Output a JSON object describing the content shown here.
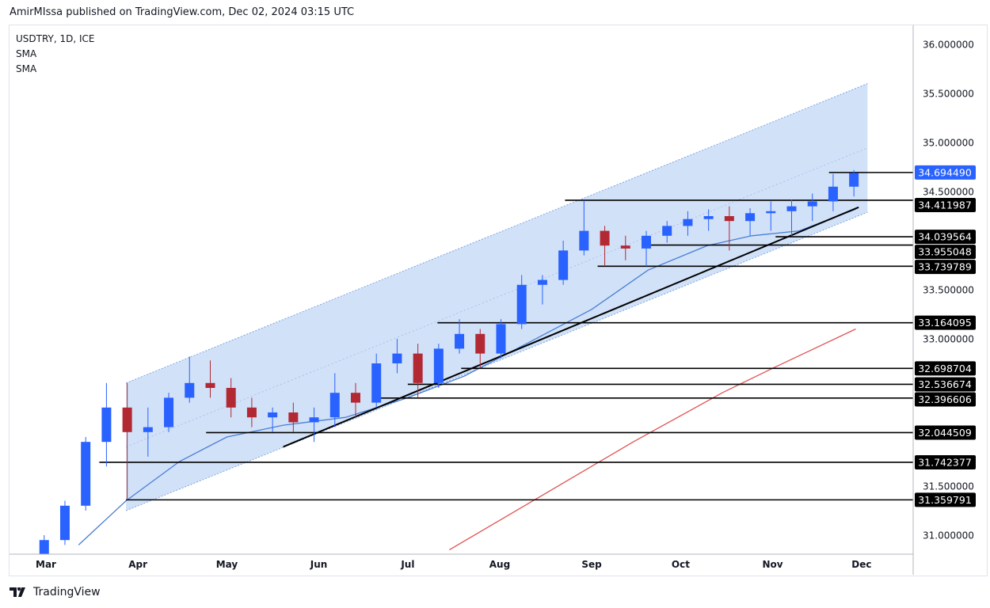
{
  "header": {
    "published": "AmirMIssa published on TradingView.com, Dec 02, 2024 03:15 UTC"
  },
  "legend": {
    "symbol": "USDTRY, 1D, ICE",
    "ind1": "SMA",
    "ind2": "SMA"
  },
  "footer": {
    "brand": "TradingView"
  },
  "colors": {
    "up": "#2962ff",
    "down": "#b22833",
    "channel": "#c9dcf7",
    "sma_fast": "#4a7fd4",
    "sma_slow": "#e05252",
    "last_price": "#2962ff"
  },
  "chart_data": {
    "type": "candlestick",
    "symbol": "USDTRY",
    "interval": "1D",
    "ylim": [
      30.85,
      36.1
    ],
    "y_ticks": [
      "36.000000",
      "35.500000",
      "35.000000",
      "34.500000",
      "33.500000",
      "33.000000",
      "31.500000",
      "31.000000"
    ],
    "x_ticks": [
      "Mar",
      "Apr",
      "May",
      "Jun",
      "Jul",
      "Aug",
      "Sep",
      "Oct",
      "Nov",
      "Dec"
    ],
    "x_tick_dates": [
      "2024-03-01",
      "2024-04-01",
      "2024-05-01",
      "2024-06-01",
      "2024-07-01",
      "2024-08-01",
      "2024-09-01",
      "2024-10-01",
      "2024-11-01",
      "2024-12-01"
    ],
    "candles": [
      {
        "d": "2024-02-27",
        "o": 30.8,
        "h": 31.0,
        "l": 30.78,
        "c": 30.95
      },
      {
        "d": "2024-03-05",
        "o": 30.95,
        "h": 31.35,
        "l": 30.9,
        "c": 31.3
      },
      {
        "d": "2024-03-12",
        "o": 31.3,
        "h": 32.0,
        "l": 31.25,
        "c": 31.95
      },
      {
        "d": "2024-03-19",
        "o": 31.95,
        "h": 32.55,
        "l": 31.7,
        "c": 32.3
      },
      {
        "d": "2024-03-26",
        "o": 32.3,
        "h": 32.55,
        "l": 31.36,
        "c": 32.05
      },
      {
        "d": "2024-04-02",
        "o": 32.05,
        "h": 32.3,
        "l": 31.8,
        "c": 32.1
      },
      {
        "d": "2024-04-09",
        "o": 32.1,
        "h": 32.45,
        "l": 32.05,
        "c": 32.4
      },
      {
        "d": "2024-04-16",
        "o": 32.4,
        "h": 32.82,
        "l": 32.35,
        "c": 32.55
      },
      {
        "d": "2024-04-23",
        "o": 32.55,
        "h": 32.78,
        "l": 32.4,
        "c": 32.5
      },
      {
        "d": "2024-04-30",
        "o": 32.5,
        "h": 32.6,
        "l": 32.2,
        "c": 32.3
      },
      {
        "d": "2024-05-07",
        "o": 32.3,
        "h": 32.4,
        "l": 32.1,
        "c": 32.2
      },
      {
        "d": "2024-05-14",
        "o": 32.2,
        "h": 32.3,
        "l": 32.05,
        "c": 32.25
      },
      {
        "d": "2024-05-21",
        "o": 32.25,
        "h": 32.35,
        "l": 32.05,
        "c": 32.15
      },
      {
        "d": "2024-05-28",
        "o": 32.15,
        "h": 32.3,
        "l": 31.95,
        "c": 32.2
      },
      {
        "d": "2024-06-04",
        "o": 32.2,
        "h": 32.65,
        "l": 32.1,
        "c": 32.45
      },
      {
        "d": "2024-06-11",
        "o": 32.45,
        "h": 32.55,
        "l": 32.2,
        "c": 32.35
      },
      {
        "d": "2024-06-18",
        "o": 32.35,
        "h": 32.85,
        "l": 32.3,
        "c": 32.75
      },
      {
        "d": "2024-06-25",
        "o": 32.75,
        "h": 33.0,
        "l": 32.65,
        "c": 32.85
      },
      {
        "d": "2024-07-02",
        "o": 32.85,
        "h": 32.95,
        "l": 32.4,
        "c": 32.55
      },
      {
        "d": "2024-07-09",
        "o": 32.55,
        "h": 32.95,
        "l": 32.5,
        "c": 32.9
      },
      {
        "d": "2024-07-16",
        "o": 32.9,
        "h": 33.2,
        "l": 32.85,
        "c": 33.05
      },
      {
        "d": "2024-07-23",
        "o": 33.05,
        "h": 33.1,
        "l": 32.7,
        "c": 32.85
      },
      {
        "d": "2024-07-30",
        "o": 32.85,
        "h": 33.2,
        "l": 32.8,
        "c": 33.15
      },
      {
        "d": "2024-08-06",
        "o": 33.15,
        "h": 33.65,
        "l": 33.1,
        "c": 33.55
      },
      {
        "d": "2024-08-13",
        "o": 33.55,
        "h": 33.65,
        "l": 33.35,
        "c": 33.6
      },
      {
        "d": "2024-08-20",
        "o": 33.6,
        "h": 34.0,
        "l": 33.55,
        "c": 33.9
      },
      {
        "d": "2024-08-27",
        "o": 33.9,
        "h": 34.41,
        "l": 33.85,
        "c": 34.1
      },
      {
        "d": "2024-09-03",
        "o": 34.1,
        "h": 34.15,
        "l": 33.75,
        "c": 33.95
      },
      {
        "d": "2024-09-10",
        "o": 33.95,
        "h": 34.05,
        "l": 33.8,
        "c": 33.92
      },
      {
        "d": "2024-09-17",
        "o": 33.92,
        "h": 34.1,
        "l": 33.74,
        "c": 34.05
      },
      {
        "d": "2024-09-24",
        "o": 34.05,
        "h": 34.2,
        "l": 33.98,
        "c": 34.15
      },
      {
        "d": "2024-10-01",
        "o": 34.15,
        "h": 34.3,
        "l": 34.05,
        "c": 34.22
      },
      {
        "d": "2024-10-08",
        "o": 34.22,
        "h": 34.32,
        "l": 34.1,
        "c": 34.25
      },
      {
        "d": "2024-10-15",
        "o": 34.25,
        "h": 34.35,
        "l": 33.9,
        "c": 34.2
      },
      {
        "d": "2024-10-22",
        "o": 34.2,
        "h": 34.33,
        "l": 34.05,
        "c": 34.28
      },
      {
        "d": "2024-10-29",
        "o": 34.28,
        "h": 34.4,
        "l": 34.1,
        "c": 34.3
      },
      {
        "d": "2024-11-05",
        "o": 34.3,
        "h": 34.42,
        "l": 34.05,
        "c": 34.35
      },
      {
        "d": "2024-11-12",
        "o": 34.35,
        "h": 34.48,
        "l": 34.2,
        "c": 34.4
      },
      {
        "d": "2024-11-19",
        "o": 34.4,
        "h": 34.68,
        "l": 34.3,
        "c": 34.55
      },
      {
        "d": "2024-11-26",
        "o": 34.55,
        "h": 34.72,
        "l": 34.45,
        "c": 34.69
      }
    ],
    "sma_fast": [
      [
        "2024-03-12",
        30.9
      ],
      [
        "2024-03-28",
        31.35
      ],
      [
        "2024-04-15",
        31.75
      ],
      [
        "2024-05-01",
        32.0
      ],
      [
        "2024-05-20",
        32.12
      ],
      [
        "2024-06-10",
        32.2
      ],
      [
        "2024-07-01",
        32.4
      ],
      [
        "2024-07-20",
        32.62
      ],
      [
        "2024-08-10",
        32.95
      ],
      [
        "2024-09-01",
        33.3
      ],
      [
        "2024-09-20",
        33.7
      ],
      [
        "2024-10-10",
        33.95
      ],
      [
        "2024-10-25",
        34.05
      ],
      [
        "2024-11-10",
        34.1
      ],
      [
        "2024-11-29",
        34.32
      ]
    ],
    "sma_slow": [
      [
        "2024-07-15",
        30.85
      ],
      [
        "2024-08-15",
        31.4
      ],
      [
        "2024-09-15",
        31.95
      ],
      [
        "2024-10-15",
        32.45
      ],
      [
        "2024-11-01",
        32.7
      ],
      [
        "2024-11-29",
        33.1
      ]
    ],
    "channel": {
      "start": "2024-03-28",
      "end": "2024-12-03",
      "upper": [
        32.55,
        35.6
      ],
      "lower": [
        31.25,
        34.29
      ]
    },
    "trendline": {
      "start": "2024-05-20",
      "end": "2024-11-30",
      "from": 31.9,
      "to": 34.34
    },
    "levels": [
      {
        "start": "2024-11-20",
        "value": "34.694490",
        "last": true
      },
      {
        "start": "2024-08-23",
        "value": "34.411987"
      },
      {
        "start": "2024-11-02",
        "value": "34.039564"
      },
      {
        "start": "2024-09-20",
        "value": "33.955048"
      },
      {
        "start": "2024-09-03",
        "value": "33.739789"
      },
      {
        "start": "2024-07-11",
        "value": "33.164095"
      },
      {
        "start": "2024-07-19",
        "value": "32.698704"
      },
      {
        "start": "2024-07-01",
        "value": "32.536674"
      },
      {
        "start": "2024-06-20",
        "value": "32.396606"
      },
      {
        "start": "2024-04-24",
        "value": "32.044509"
      },
      {
        "start": "2024-03-19",
        "value": "31.742377"
      },
      {
        "start": "2024-03-28",
        "value": "31.359791"
      }
    ]
  }
}
